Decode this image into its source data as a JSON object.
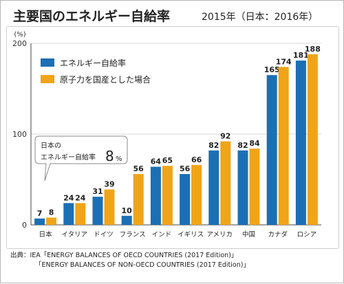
{
  "title": "主要国のエネルギー自給率",
  "subtitle": "2015年（日本：2016年）",
  "chart_data": {
    "type": "bar",
    "ylabel": "(%)",
    "ylim": [
      0,
      200
    ],
    "yticks": [
      0,
      100,
      200
    ],
    "grid": true,
    "legend_placement": "top-left",
    "categories": [
      "日本",
      "イタリア",
      "ドイツ",
      "フランス",
      "インド",
      "イギリス",
      "アメリカ",
      "中国",
      "カナダ",
      "ロシア"
    ],
    "series": [
      {
        "name": "エネルギー自給率",
        "color": "#1b6fb5",
        "values": [
          7,
          24,
          31,
          10,
          64,
          56,
          82,
          82,
          165,
          181
        ]
      },
      {
        "name": "原子力を国産とした場合",
        "color": "#f0a418",
        "values": [
          8,
          24,
          39,
          56,
          65,
          66,
          92,
          84,
          174,
          188
        ]
      }
    ],
    "annotation": {
      "line1": "日本の",
      "line2": "エネルギー自給率",
      "value": "8",
      "unit": "%"
    }
  },
  "source": {
    "line1": "出典：IEA「ENERGY BALANCES OF OECD COUNTRIES (2017 Edition)」",
    "line2": "「ENERGY BALANCES OF NON-OECD COUNTRIES (2017 Edition)」"
  }
}
